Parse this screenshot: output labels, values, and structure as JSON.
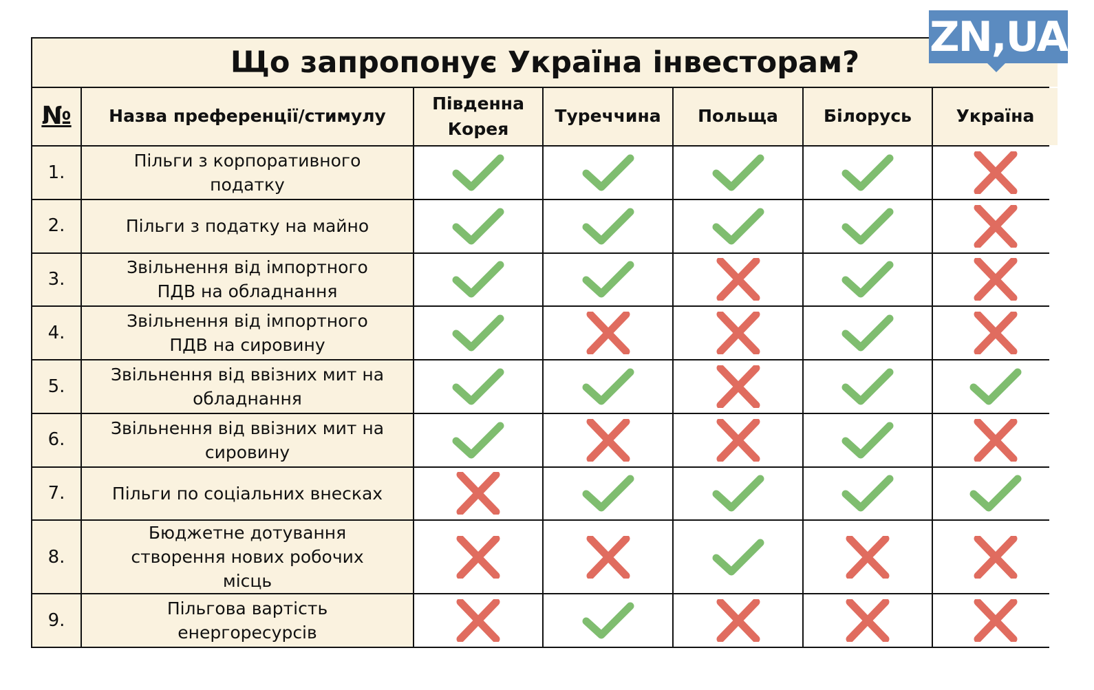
{
  "logo": "ZN,UA",
  "colors": {
    "yes": "#7fbd6f",
    "no": "#e06c5f",
    "background": "#faf2df",
    "logo": "#5b8bc0"
  },
  "chart_data": {
    "type": "table",
    "title": "Що запропонує Україна інвесторам?",
    "headers": [
      "№",
      "Назва преференції/стимулу",
      "Південна Корея",
      "Туреччина",
      "Польща",
      "Білорусь",
      "Україна"
    ],
    "rows": [
      {
        "no": "1.",
        "name": "Пільги з корпоративного податку",
        "values": [
          true,
          true,
          true,
          true,
          false
        ]
      },
      {
        "no": "2.",
        "name": "Пільги з податку на майно",
        "values": [
          true,
          true,
          true,
          true,
          false
        ]
      },
      {
        "no": "3.",
        "name": "Звільнення від імпортного ПДВ на обладнання",
        "values": [
          true,
          true,
          false,
          true,
          false
        ]
      },
      {
        "no": "4.",
        "name": "Звільнення від імпортного ПДВ на сировину",
        "values": [
          true,
          false,
          false,
          true,
          false
        ]
      },
      {
        "no": "5.",
        "name": "Звільнення від ввізних мит на обладнання",
        "values": [
          true,
          true,
          false,
          true,
          true
        ]
      },
      {
        "no": "6.",
        "name": "Звільнення від ввізних мит на сировину",
        "values": [
          true,
          false,
          false,
          true,
          false
        ]
      },
      {
        "no": "7.",
        "name": "Пільги по соціальних  внесках",
        "values": [
          false,
          true,
          true,
          true,
          true
        ]
      },
      {
        "no": "8.",
        "name": "Бюджетне дотування створення нових робочих місць",
        "values": [
          false,
          false,
          true,
          false,
          false
        ]
      },
      {
        "no": "9.",
        "name": "Пільгова вартість енергоресурсів",
        "values": [
          false,
          true,
          false,
          false,
          false
        ]
      }
    ]
  }
}
